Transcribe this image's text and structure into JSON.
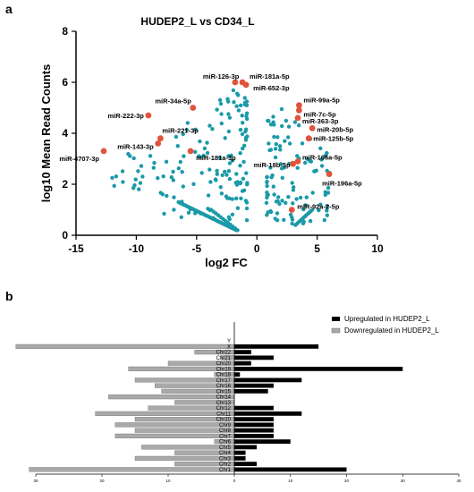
{
  "panels": {
    "a": "a",
    "b": "b"
  },
  "chart_data": [
    {
      "type": "scatter",
      "title": "HUDEP2_L vs CD34_L",
      "xlabel": "log2 FC",
      "ylabel": "log10 Mean Read Counts",
      "xlim": [
        -15,
        10
      ],
      "ylim": [
        0,
        8
      ],
      "xticks": [
        "-15",
        "-10",
        "-5",
        "0",
        "5",
        "10"
      ],
      "yticks": [
        "0",
        "2",
        "4",
        "6",
        "8"
      ],
      "colors": {
        "background_points": "#1a9aa8",
        "highlight": "#e0543c"
      },
      "highlighted": [
        {
          "label": "miR-126-3p",
          "x": -1.8,
          "y": 6.0
        },
        {
          "label": "miR-181a-5p",
          "x": -1.2,
          "y": 6.0
        },
        {
          "label": "miR-652-3p",
          "x": -0.9,
          "y": 5.9
        },
        {
          "label": "miR-34a-5p",
          "x": -5.3,
          "y": 5.0
        },
        {
          "label": "miR-222-3p",
          "x": -9.0,
          "y": 4.7
        },
        {
          "label": "miR-221-3p",
          "x": -8.0,
          "y": 3.8
        },
        {
          "label": "miR-143-3p",
          "x": -8.2,
          "y": 3.6
        },
        {
          "label": "miR-181a-3p",
          "x": -5.5,
          "y": 3.3
        },
        {
          "label": "miR-4707-3p",
          "x": -12.7,
          "y": 3.3
        },
        {
          "label": "miR-99a-5p",
          "x": 3.5,
          "y": 5.1
        },
        {
          "label": "miR-7c-5p",
          "x": 3.5,
          "y": 4.9
        },
        {
          "label": "miR-363-3p",
          "x": 3.4,
          "y": 4.6
        },
        {
          "label": "miR-20b-5p",
          "x": 4.6,
          "y": 4.2
        },
        {
          "label": "miR-125b-5p",
          "x": 4.3,
          "y": 3.8
        },
        {
          "label": "miR-106a-5p",
          "x": 3.4,
          "y": 2.9
        },
        {
          "label": "miR-18b-5p",
          "x": 3.0,
          "y": 2.8
        },
        {
          "label": "miR-196a-5p",
          "x": 6.0,
          "y": 2.4
        },
        {
          "label": "miR-92a-2-5p",
          "x": 2.9,
          "y": 1.0
        }
      ]
    },
    {
      "type": "bar",
      "orientation": "horizontal",
      "categories": [
        "Chr1",
        "Chr2",
        "Chr3",
        "Chr4",
        "Chr5",
        "Chr6",
        "Chr7",
        "Chr8",
        "Chr9",
        "Chr10",
        "Chr11",
        "Chr12",
        "Chr13",
        "Chr14",
        "Chr15",
        "Chr16",
        "Chr17",
        "Chr18",
        "Chr19",
        "Chr20",
        "Chr21",
        "Chr22",
        "X",
        "Y"
      ],
      "series": [
        {
          "name": "Upregulated in HUDEP2_L",
          "color": "#000000",
          "values": [
            20,
            4,
            2,
            2,
            4,
            10,
            7,
            7,
            7,
            7,
            12,
            7,
            0,
            0,
            6,
            7,
            12,
            1,
            30,
            3,
            7,
            3,
            15,
            0
          ]
        },
        {
          "name": "Downregulated in HUDEP2_L",
          "color": "#a9a9a9",
          "values": [
            31,
            9,
            15,
            9,
            14,
            3,
            18,
            15,
            18,
            15,
            21,
            13,
            9,
            19,
            11,
            12,
            15,
            3,
            16,
            10,
            2,
            6,
            33,
            0
          ]
        }
      ],
      "xlim": [
        -30,
        40
      ],
      "xticks": [
        "30",
        "20",
        "10",
        "0",
        "10",
        "20",
        "30",
        "40"
      ],
      "legend": "top-right"
    }
  ]
}
